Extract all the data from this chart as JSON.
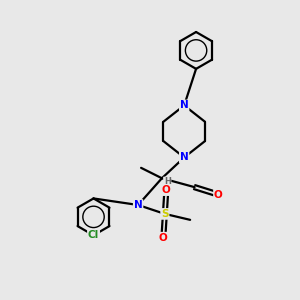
{
  "background_color": "#e8e8e8",
  "atom_colors": {
    "N": "#0000ff",
    "O": "#ff0000",
    "S": "#cccc00",
    "Cl": "#228B22",
    "C": "#000000",
    "H": "#666666"
  },
  "bond_color": "#000000",
  "bond_width": 1.6,
  "fig_width": 3.0,
  "fig_height": 3.0,
  "dpi": 100
}
